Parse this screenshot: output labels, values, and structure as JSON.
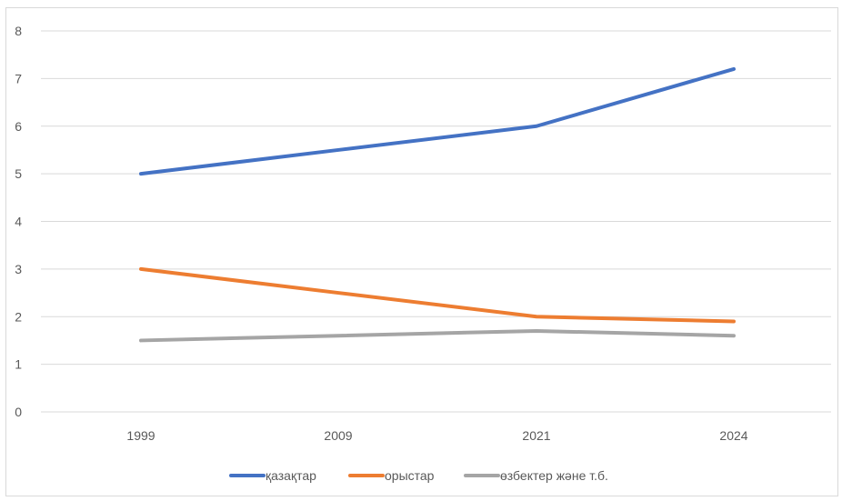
{
  "chart_data": {
    "type": "line",
    "categories": [
      "1999",
      "2009",
      "2021",
      "2024"
    ],
    "ylim": [
      0,
      8
    ],
    "yticks": [
      0,
      1,
      2,
      3,
      4,
      5,
      6,
      7,
      8
    ],
    "grid": true,
    "legend_position": "bottom",
    "series": [
      {
        "name": "қазақтар",
        "values": [
          5,
          5.5,
          6,
          7.2
        ],
        "color": "#4472C4"
      },
      {
        "name": "орыстар",
        "values": [
          3,
          2.5,
          2,
          1.9
        ],
        "color": "#ED7D31"
      },
      {
        "name": "өзбектер және т.б.",
        "values": [
          1.5,
          1.6,
          1.7,
          1.6
        ],
        "color": "#A5A5A5"
      }
    ]
  }
}
